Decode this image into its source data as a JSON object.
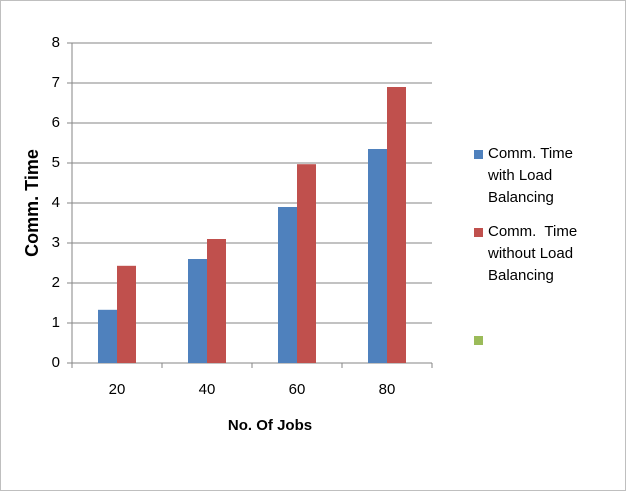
{
  "chart_data": {
    "type": "bar",
    "categories": [
      "20",
      "40",
      "60",
      "80"
    ],
    "series": [
      {
        "name": "Comm. Time with Load Balancing",
        "color": "#4f81bd",
        "values": [
          1.33,
          2.6,
          3.9,
          5.35
        ]
      },
      {
        "name": "Comm.  Time without Load Balancing",
        "color": "#c0504d",
        "values": [
          2.43,
          3.1,
          4.97,
          6.9
        ]
      }
    ],
    "xlabel": "No. Of  Jobs",
    "ylabel": "Comm. Time",
    "ylim": [
      0,
      8
    ],
    "yticks": [
      0,
      1,
      2,
      3,
      4,
      5,
      6,
      7,
      8
    ],
    "grid": true,
    "legend": "right"
  }
}
